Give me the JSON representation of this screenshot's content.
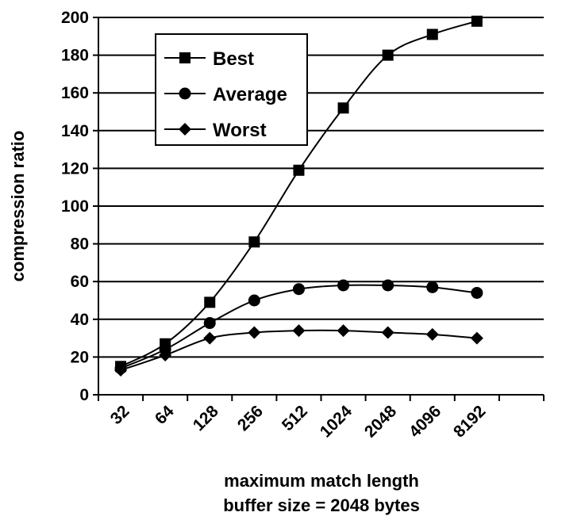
{
  "chart_data": {
    "type": "line",
    "title": "",
    "categories": [
      "32",
      "64",
      "128",
      "256",
      "512",
      "1024",
      "2048",
      "4096",
      "8192"
    ],
    "ylabel": "compression ratio",
    "xlabel": "maximum match length",
    "xlabel2": "buffer size = 2048 bytes",
    "ylim": [
      0,
      200
    ],
    "yticks": [
      0,
      20,
      40,
      60,
      80,
      100,
      120,
      140,
      160,
      180,
      200
    ],
    "grid": "horizontal",
    "legend_position": "top-left",
    "series": [
      {
        "name": "Best",
        "marker": "square",
        "values": [
          15,
          27,
          49,
          81,
          119,
          152,
          180,
          191,
          198
        ]
      },
      {
        "name": "Average",
        "marker": "circle",
        "values": [
          14,
          24,
          38,
          50,
          56,
          58,
          58,
          57,
          54
        ]
      },
      {
        "name": "Worst",
        "marker": "diamond",
        "values": [
          13,
          21,
          30,
          33,
          34,
          34,
          33,
          32,
          30
        ]
      }
    ]
  }
}
